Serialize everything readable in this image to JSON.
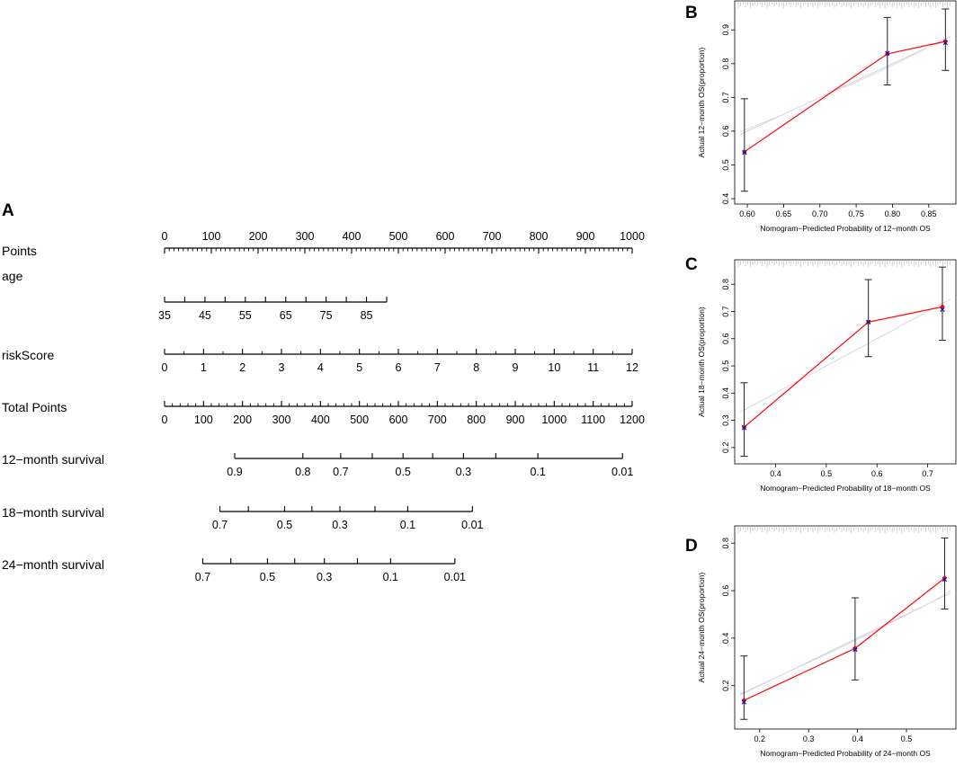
{
  "colors": {
    "ink": "#000000",
    "observed_line": "#ff0000",
    "observed_point": "#1a1aa6",
    "ideal_line": "#c8c8c8",
    "smooth_line": "#d9dce8",
    "rug": "#b4b4b4",
    "frame": "#333333",
    "errorbar": "#222222"
  },
  "chart_data": [
    {
      "id": "A",
      "type": "nomogram",
      "panel_letter": "A",
      "rows": [
        {
          "name": "points",
          "label": "Points",
          "ticks": [
            0,
            100,
            200,
            300,
            400,
            500,
            600,
            700,
            800,
            900,
            1000
          ],
          "tick_labels": [
            "0",
            "100",
            "200",
            "300",
            "400",
            "500",
            "600",
            "700",
            "800",
            "900",
            "1000"
          ],
          "minor": 10,
          "label_side": "above"
        },
        {
          "name": "age",
          "label": "age",
          "ticks": [
            35,
            40,
            45,
            50,
            55,
            60,
            65,
            70,
            75,
            80,
            85,
            90
          ],
          "tick_labels": [
            "35",
            "",
            "45",
            "",
            "55",
            "",
            "65",
            "",
            "75",
            "",
            "85",
            ""
          ],
          "minor": 1,
          "label_side": "below",
          "points_at_min": 0,
          "points_at_max": 475
        },
        {
          "name": "riskscore",
          "label": "riskScore",
          "ticks": [
            0,
            1,
            2,
            3,
            4,
            5,
            6,
            7,
            8,
            9,
            10,
            11,
            12
          ],
          "tick_labels": [
            "0",
            "1",
            "2",
            "3",
            "4",
            "5",
            "6",
            "7",
            "8",
            "9",
            "10",
            "11",
            "12"
          ],
          "minor": 2,
          "label_side": "below",
          "points_at_min": 0,
          "points_at_max": 1000
        },
        {
          "name": "total-points",
          "label": "Total Points",
          "ticks": [
            0,
            100,
            200,
            300,
            400,
            500,
            600,
            700,
            800,
            900,
            1000,
            1100,
            1200
          ],
          "tick_labels": [
            "0",
            "100",
            "200",
            "300",
            "400",
            "500",
            "600",
            "700",
            "800",
            "900",
            "1000",
            "1100",
            "1200"
          ],
          "minor": 5,
          "label_side": "below"
        },
        {
          "name": "survival-12",
          "label": "12−month survival",
          "ticks": [
            0.9,
            0.8,
            0.7,
            0.6,
            0.5,
            0.4,
            0.3,
            0.2,
            0.1,
            0.01
          ],
          "tick_labels": [
            "0.9",
            "0.8",
            "0.7",
            "",
            "0.5",
            "",
            "0.3",
            "",
            "0.1",
            "0.01"
          ],
          "total_at": [
            180,
            355,
            452,
            533,
            612,
            688,
            767,
            850,
            958,
            1175
          ],
          "label_side": "below"
        },
        {
          "name": "survival-18",
          "label": "18−month survival",
          "ticks": [
            0.7,
            0.6,
            0.5,
            0.4,
            0.3,
            0.2,
            0.1,
            0.01
          ],
          "tick_labels": [
            "0.7",
            "",
            "0.5",
            "",
            "0.3",
            "",
            "0.1",
            "0.01"
          ],
          "total_at": [
            142,
            215,
            308,
            378,
            450,
            540,
            624,
            790
          ],
          "label_side": "below"
        },
        {
          "name": "survival-24",
          "label": "24−month survival",
          "ticks": [
            0.7,
            0.6,
            0.5,
            0.4,
            0.3,
            0.2,
            0.1,
            0.01
          ],
          "tick_labels": [
            "0.7",
            "",
            "0.5",
            "",
            "0.3",
            "",
            "0.1",
            "0.01"
          ],
          "total_at": [
            98,
            170,
            264,
            334,
            410,
            495,
            580,
            745
          ],
          "label_side": "below"
        }
      ]
    },
    {
      "id": "B",
      "type": "calibration",
      "panel_letter": "B",
      "xlabel": "Nomogram−Predicted Probability of 12−month OS",
      "ylabel": "Actual 12−month OS(proportion)",
      "xlim": [
        0.59,
        0.88
      ],
      "ylim": [
        0.4,
        0.97
      ],
      "xticks": [
        0.6,
        0.65,
        0.7,
        0.75,
        0.8,
        0.85
      ],
      "xtick_labels": [
        "0.60",
        "0.65",
        "0.70",
        "0.75",
        "0.80",
        "0.85"
      ],
      "yticks": [
        0.4,
        0.5,
        0.6,
        0.7,
        0.8,
        0.9
      ],
      "ytick_labels": [
        "0.4",
        "0.5",
        "0.6",
        "0.7",
        "0.8",
        "0.9"
      ],
      "observed": {
        "x": [
          0.596,
          0.793,
          0.873
        ],
        "y": [
          0.539,
          0.829,
          0.866
        ]
      },
      "error_low": [
        0.422,
        0.737,
        0.78
      ],
      "error_high": [
        0.696,
        0.937,
        0.962
      ],
      "bias_corrected": {
        "x": [
          0.596,
          0.793,
          0.873
        ],
        "y": [
          0.537,
          0.831,
          0.862
        ]
      },
      "smooth": {
        "x": [
          0.59,
          0.65,
          0.7,
          0.75,
          0.8,
          0.85,
          0.88
        ],
        "y": [
          0.598,
          0.65,
          0.7,
          0.745,
          0.795,
          0.85,
          0.87
        ]
      }
    },
    {
      "id": "C",
      "type": "calibration",
      "panel_letter": "C",
      "xlabel": "Nomogram−Predicted Probability of 18−month OS",
      "ylabel": "Actual 18−month OS(proportion)",
      "xlim": [
        0.33,
        0.745
      ],
      "ylim": [
        0.16,
        0.87
      ],
      "xticks": [
        0.4,
        0.5,
        0.6,
        0.7
      ],
      "xtick_labels": [
        "0.4",
        "0.5",
        "0.6",
        "0.7"
      ],
      "yticks": [
        0.2,
        0.3,
        0.4,
        0.5,
        0.6,
        0.7,
        0.8
      ],
      "ytick_labels": [
        "0.2",
        "0.3",
        "0.4",
        "0.5",
        "0.6",
        "0.7",
        "0.8"
      ],
      "observed": {
        "x": [
          0.338,
          0.583,
          0.729
        ],
        "y": [
          0.275,
          0.661,
          0.717
        ]
      },
      "error_low": [
        0.168,
        0.534,
        0.594
      ],
      "error_high": [
        0.438,
        0.817,
        0.863
      ],
      "bias_corrected": {
        "x": [
          0.338,
          0.583,
          0.729
        ],
        "y": [
          0.273,
          0.661,
          0.707
        ]
      },
      "smooth": {
        "x": [
          0.33,
          0.4,
          0.5,
          0.6,
          0.7,
          0.745
        ],
        "y": [
          0.33,
          0.4,
          0.5,
          0.6,
          0.7,
          0.745
        ]
      }
    },
    {
      "id": "D",
      "type": "calibration",
      "panel_letter": "D",
      "xlabel": "Nomogram−Predicted Probability of 24−month OS",
      "ylabel": "Actual 24−month OS(proportion)",
      "xlim": [
        0.16,
        0.59
      ],
      "ylim": [
        0.04,
        0.85
      ],
      "xticks": [
        0.2,
        0.3,
        0.4,
        0.5
      ],
      "xtick_labels": [
        "0.2",
        "0.3",
        "0.4",
        "0.5"
      ],
      "yticks": [
        0.2,
        0.4,
        0.6,
        0.8
      ],
      "ytick_labels": [
        "0.2",
        "0.4",
        "0.6",
        "0.8"
      ],
      "observed": {
        "x": [
          0.168,
          0.395,
          0.578
        ],
        "y": [
          0.138,
          0.357,
          0.653
        ]
      },
      "error_low": [
        0.058,
        0.224,
        0.523
      ],
      "error_high": [
        0.325,
        0.57,
        0.822
      ],
      "bias_corrected": {
        "x": [
          0.168,
          0.395,
          0.578
        ],
        "y": [
          0.131,
          0.352,
          0.647
        ]
      },
      "smooth": {
        "x": [
          0.16,
          0.25,
          0.35,
          0.45,
          0.55,
          0.59
        ],
        "y": [
          0.165,
          0.25,
          0.345,
          0.445,
          0.55,
          0.6
        ]
      }
    }
  ]
}
